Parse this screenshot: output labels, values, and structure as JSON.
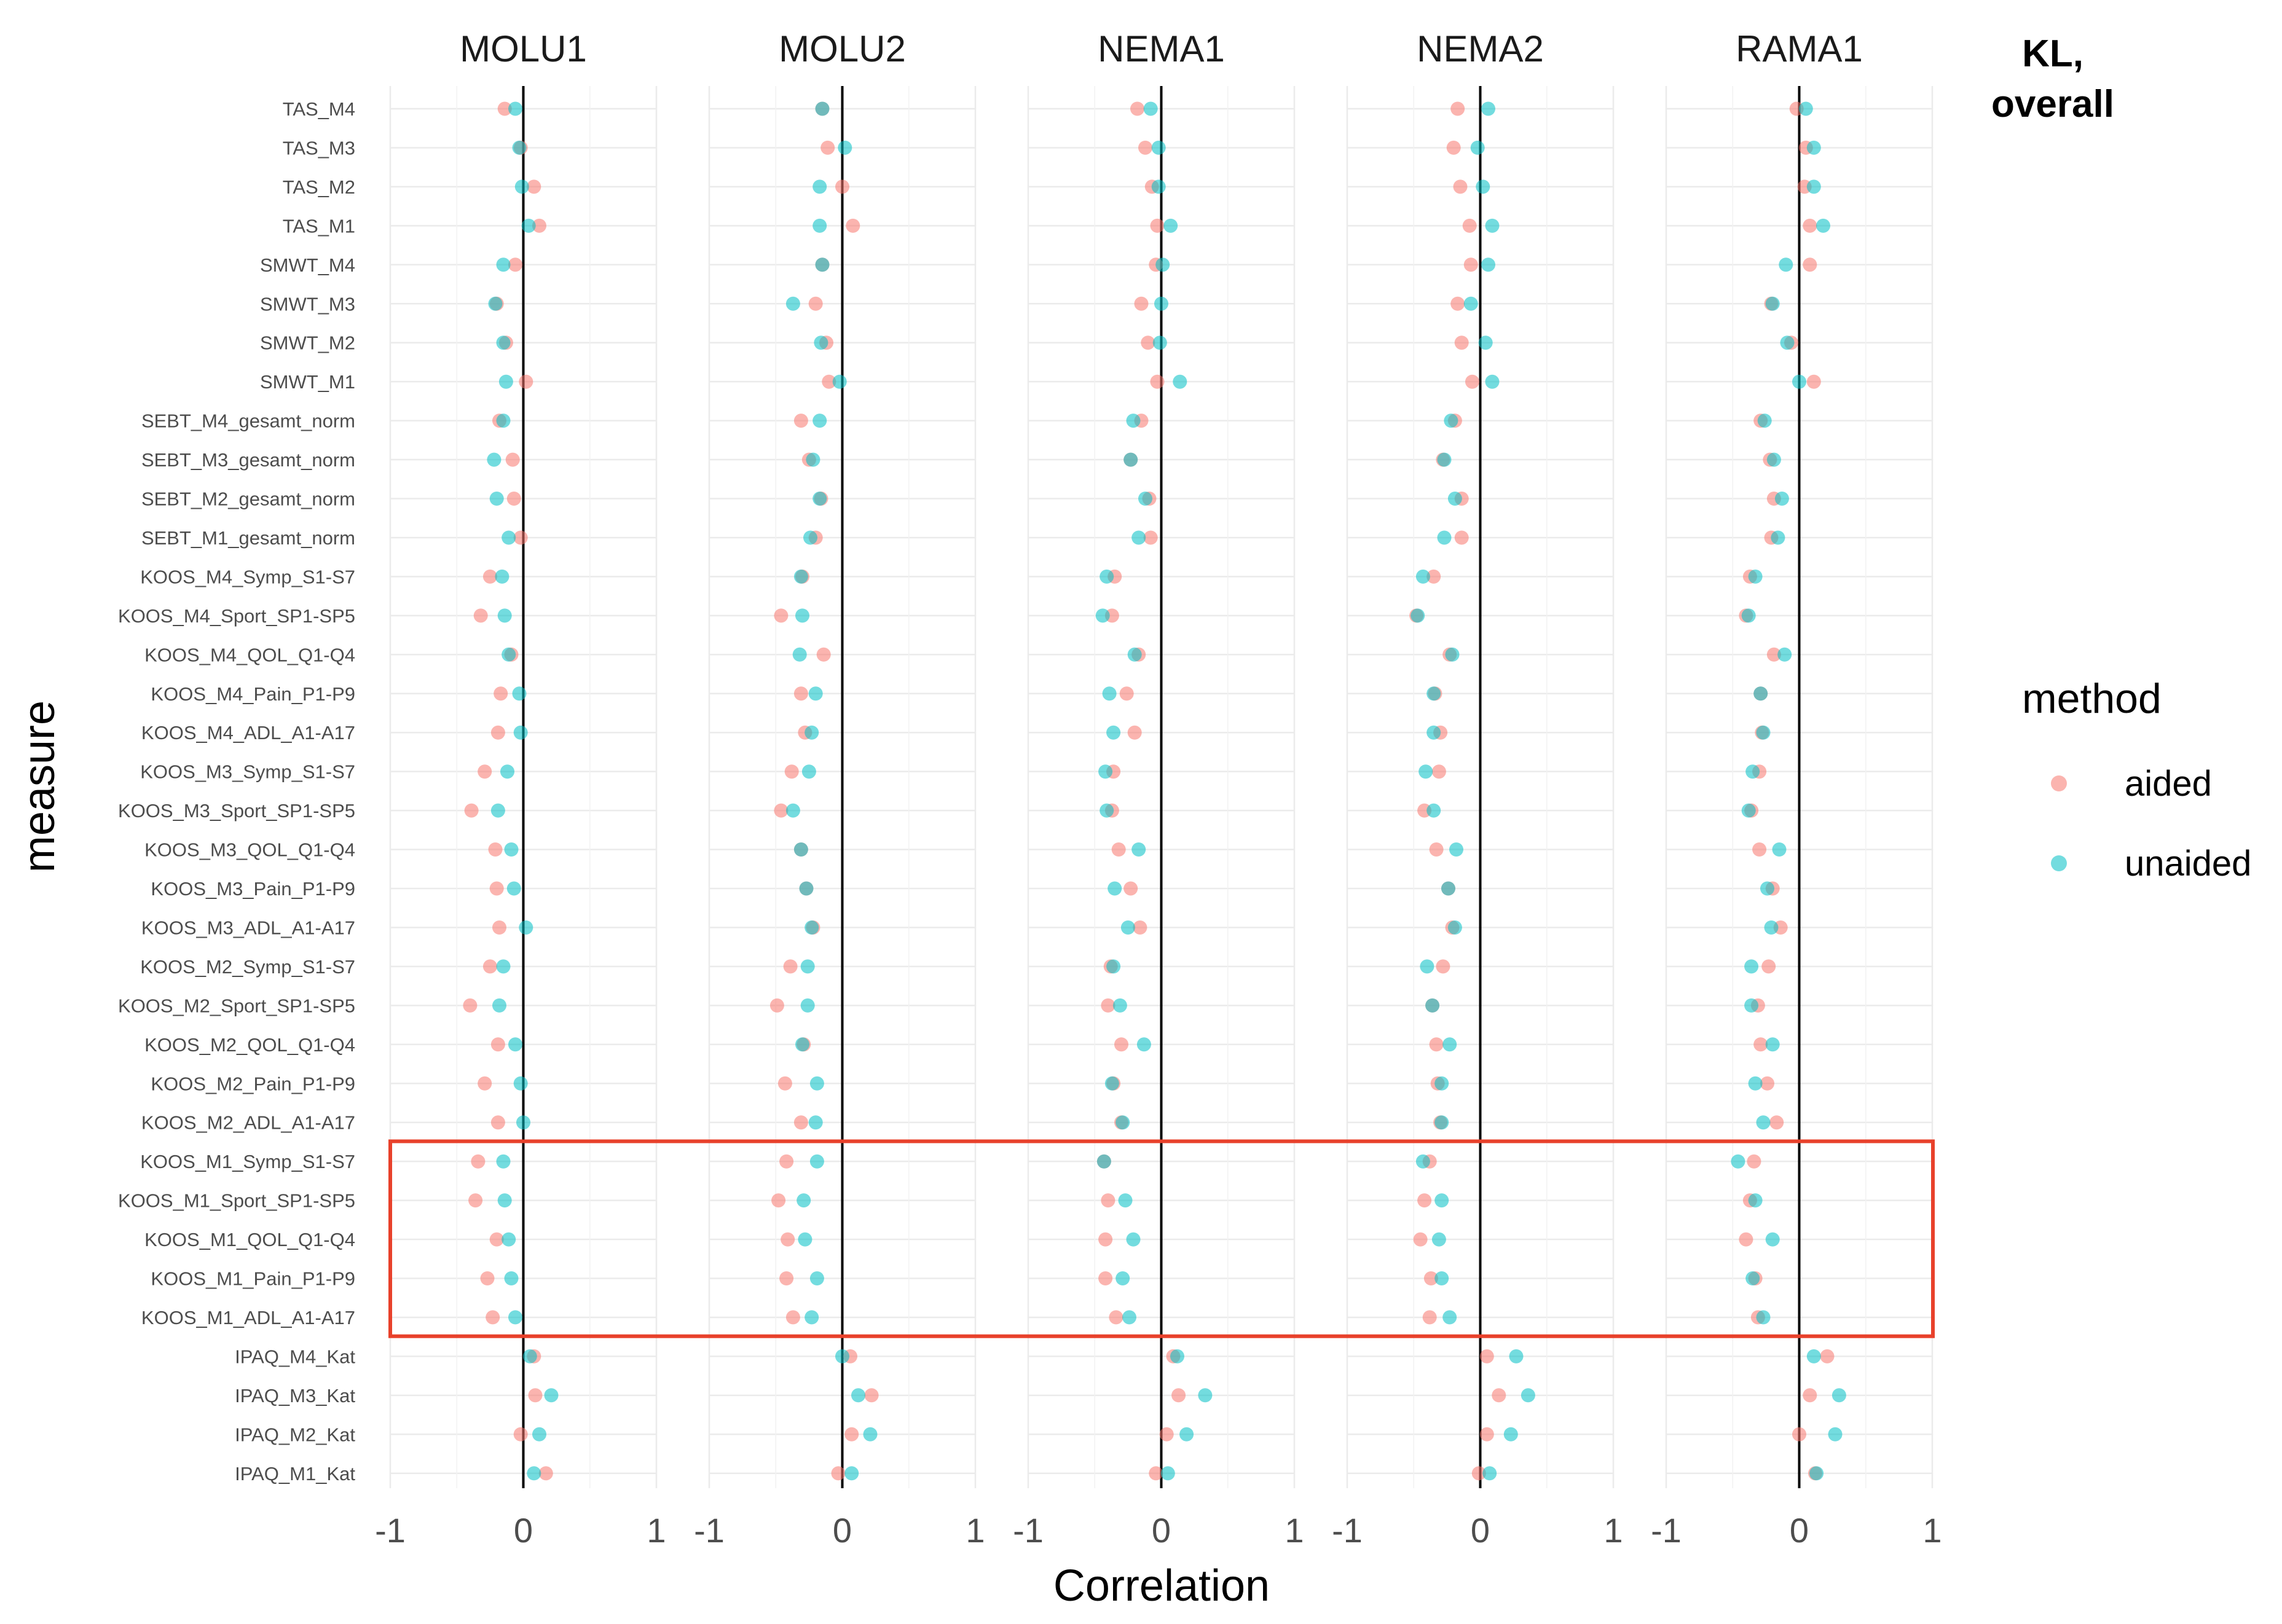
{
  "chart_data": {
    "type": "scatter",
    "facet_titles": [
      "MOLU1",
      "MOLU2",
      "NEMA1",
      "NEMA2",
      "RAMA1"
    ],
    "corner_label": [
      "KL,",
      "overall"
    ],
    "xlabel": "Correlation",
    "ylabel": "measure",
    "xlim": [
      -1,
      1
    ],
    "x_ticks": [
      "-1",
      "0",
      "1"
    ],
    "legend": {
      "title": "method",
      "items": [
        {
          "label": "aided",
          "color": "#F8766D"
        },
        {
          "label": "unaided",
          "color": "#00BFC4"
        }
      ]
    },
    "highlight": {
      "color": "#E8412B",
      "from_measure": "KOOS_M1_Symp_S1-S7",
      "to_measure": "KOOS_M1_ADL_A1-A17"
    },
    "measures": [
      "TAS_M4",
      "TAS_M3",
      "TAS_M2",
      "TAS_M1",
      "SMWT_M4",
      "SMWT_M3",
      "SMWT_M2",
      "SMWT_M1",
      "SEBT_M4_gesamt_norm",
      "SEBT_M3_gesamt_norm",
      "SEBT_M2_gesamt_norm",
      "SEBT_M1_gesamt_norm",
      "KOOS_M4_Symp_S1-S7",
      "KOOS_M4_Sport_SP1-SP5",
      "KOOS_M4_QOL_Q1-Q4",
      "KOOS_M4_Pain_P1-P9",
      "KOOS_M4_ADL_A1-A17",
      "KOOS_M3_Symp_S1-S7",
      "KOOS_M3_Sport_SP1-SP5",
      "KOOS_M3_QOL_Q1-Q4",
      "KOOS_M3_Pain_P1-P9",
      "KOOS_M3_ADL_A1-A17",
      "KOOS_M2_Symp_S1-S7",
      "KOOS_M2_Sport_SP1-SP5",
      "KOOS_M2_QOL_Q1-Q4",
      "KOOS_M2_Pain_P1-P9",
      "KOOS_M2_ADL_A1-A17",
      "KOOS_M1_Symp_S1-S7",
      "KOOS_M1_Sport_SP1-SP5",
      "KOOS_M1_QOL_Q1-Q4",
      "KOOS_M1_Pain_P1-P9",
      "KOOS_M1_ADL_A1-A17",
      "IPAQ_M4_Kat",
      "IPAQ_M3_Kat",
      "IPAQ_M2_Kat",
      "IPAQ_M1_Kat"
    ],
    "series": [
      {
        "name": "aided",
        "values": {
          "MOLU1": [
            -0.14,
            -0.02,
            0.08,
            0.12,
            -0.06,
            -0.2,
            -0.13,
            0.02,
            -0.18,
            -0.08,
            -0.07,
            -0.02,
            -0.25,
            -0.32,
            -0.09,
            -0.17,
            -0.19,
            -0.29,
            -0.39,
            -0.21,
            -0.2,
            -0.18,
            -0.25,
            -0.4,
            -0.19,
            -0.29,
            -0.19,
            -0.34,
            -0.36,
            -0.2,
            -0.27,
            -0.23,
            0.08,
            0.09,
            -0.02,
            0.17
          ],
          "MOLU2": [
            -0.15,
            -0.11,
            0.0,
            0.08,
            -0.15,
            -0.2,
            -0.12,
            -0.1,
            -0.31,
            -0.25,
            -0.16,
            -0.2,
            -0.3,
            -0.46,
            -0.14,
            -0.31,
            -0.28,
            -0.38,
            -0.46,
            -0.31,
            -0.27,
            -0.22,
            -0.39,
            -0.49,
            -0.29,
            -0.43,
            -0.31,
            -0.42,
            -0.48,
            -0.41,
            -0.42,
            -0.37,
            0.06,
            0.22,
            0.07,
            -0.03
          ],
          "NEMA1": [
            -0.18,
            -0.12,
            -0.07,
            -0.03,
            -0.04,
            -0.15,
            -0.1,
            -0.03,
            -0.15,
            -0.23,
            -0.09,
            -0.08,
            -0.35,
            -0.37,
            -0.17,
            -0.26,
            -0.2,
            -0.36,
            -0.37,
            -0.32,
            -0.23,
            -0.16,
            -0.38,
            -0.4,
            -0.3,
            -0.36,
            -0.3,
            -0.43,
            -0.4,
            -0.42,
            -0.42,
            -0.34,
            0.09,
            0.13,
            0.04,
            -0.04
          ],
          "NEMA2": [
            -0.17,
            -0.2,
            -0.15,
            -0.08,
            -0.07,
            -0.17,
            -0.14,
            -0.06,
            -0.19,
            -0.28,
            -0.14,
            -0.14,
            -0.35,
            -0.48,
            -0.23,
            -0.34,
            -0.3,
            -0.31,
            -0.42,
            -0.33,
            -0.24,
            -0.21,
            -0.28,
            -0.36,
            -0.33,
            -0.32,
            -0.3,
            -0.38,
            -0.42,
            -0.45,
            -0.37,
            -0.38,
            0.05,
            0.14,
            0.05,
            -0.01
          ],
          "RAMA1": [
            -0.02,
            0.05,
            0.04,
            0.08,
            0.08,
            -0.21,
            -0.06,
            0.11,
            -0.29,
            -0.22,
            -0.19,
            -0.21,
            -0.37,
            -0.4,
            -0.19,
            -0.29,
            -0.28,
            -0.3,
            -0.36,
            -0.3,
            -0.2,
            -0.14,
            -0.23,
            -0.31,
            -0.29,
            -0.24,
            -0.17,
            -0.34,
            -0.37,
            -0.4,
            -0.33,
            -0.31,
            0.21,
            0.08,
            0.0,
            0.12
          ]
        }
      },
      {
        "name": "unaided",
        "values": {
          "MOLU1": [
            -0.06,
            -0.03,
            -0.01,
            0.04,
            -0.15,
            -0.21,
            -0.15,
            -0.13,
            -0.15,
            -0.22,
            -0.2,
            -0.11,
            -0.16,
            -0.14,
            -0.11,
            -0.03,
            -0.02,
            -0.12,
            -0.19,
            -0.09,
            -0.07,
            0.02,
            -0.15,
            -0.18,
            -0.06,
            -0.02,
            0.0,
            -0.15,
            -0.14,
            -0.11,
            -0.09,
            -0.06,
            0.05,
            0.21,
            0.12,
            0.08
          ],
          "MOLU2": [
            -0.15,
            0.02,
            -0.17,
            -0.17,
            -0.15,
            -0.37,
            -0.16,
            -0.02,
            -0.17,
            -0.22,
            -0.17,
            -0.24,
            -0.31,
            -0.3,
            -0.32,
            -0.2,
            -0.23,
            -0.25,
            -0.37,
            -0.31,
            -0.27,
            -0.23,
            -0.26,
            -0.26,
            -0.3,
            -0.19,
            -0.2,
            -0.19,
            -0.29,
            -0.28,
            -0.19,
            -0.23,
            0.0,
            0.12,
            0.21,
            0.07
          ],
          "NEMA1": [
            -0.08,
            -0.02,
            -0.02,
            0.07,
            0.01,
            0.0,
            -0.01,
            0.14,
            -0.21,
            -0.23,
            -0.12,
            -0.17,
            -0.41,
            -0.44,
            -0.2,
            -0.39,
            -0.36,
            -0.42,
            -0.41,
            -0.17,
            -0.35,
            -0.25,
            -0.36,
            -0.31,
            -0.13,
            -0.37,
            -0.29,
            -0.43,
            -0.27,
            -0.21,
            -0.29,
            -0.24,
            0.12,
            0.33,
            0.19,
            0.05
          ],
          "NEMA2": [
            0.06,
            -0.02,
            0.02,
            0.09,
            0.06,
            -0.07,
            0.04,
            0.09,
            -0.22,
            -0.27,
            -0.19,
            -0.27,
            -0.43,
            -0.47,
            -0.21,
            -0.35,
            -0.35,
            -0.41,
            -0.35,
            -0.18,
            -0.24,
            -0.19,
            -0.4,
            -0.36,
            -0.23,
            -0.29,
            -0.29,
            -0.43,
            -0.29,
            -0.31,
            -0.29,
            -0.23,
            0.27,
            0.36,
            0.23,
            0.07
          ],
          "RAMA1": [
            0.05,
            0.11,
            0.11,
            0.18,
            -0.1,
            -0.2,
            -0.09,
            0.0,
            -0.26,
            -0.19,
            -0.13,
            -0.16,
            -0.33,
            -0.38,
            -0.11,
            -0.29,
            -0.27,
            -0.35,
            -0.38,
            -0.15,
            -0.24,
            -0.21,
            -0.36,
            -0.36,
            -0.2,
            -0.33,
            -0.27,
            -0.46,
            -0.33,
            -0.2,
            -0.35,
            -0.27,
            0.11,
            0.3,
            0.27,
            0.13
          ]
        }
      }
    ]
  }
}
